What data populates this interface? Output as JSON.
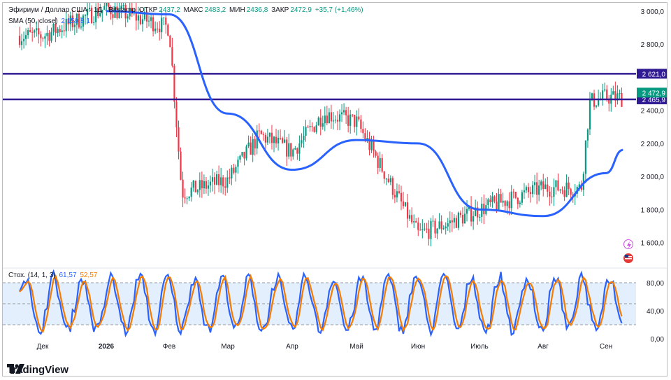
{
  "legend": {
    "symbol": "Эфириум / Доллар США · 1Д · Bitstamp",
    "open_label": "ОТКР",
    "open_value": "2437,2",
    "high_label": "МАКС",
    "high_value": "2483,2",
    "low_label": "МИН",
    "low_value": "2436,8",
    "close_label": "ЗАКР",
    "close_value": "2472,9",
    "change": "+35,7 (+1,46%)",
    "sma_label": "SMA (50, close)",
    "sma_value": "2 159,8 1"
  },
  "stoch_legend": {
    "label": "Стох. (14, 1, 3)",
    "k_value": "61,57",
    "d_value": "52,57"
  },
  "brand": {
    "name": "TradingView"
  },
  "colors": {
    "up": "#089981",
    "down": "#f23645",
    "sma": "#2962ff",
    "level": "#311b92",
    "stoch_k": "#2962ff",
    "stoch_d": "#f57c00",
    "stoch_band": "#e3effc"
  },
  "icons": [
    "lightning-icon",
    "flag-icon"
  ],
  "chart_data": [
    {
      "type": "candlestick",
      "title": "Эфириум / Доллар США · 1Д · Bitstamp",
      "ylim": [
        1450,
        3050
      ],
      "y_ticks": [
        "1 600,0",
        "1 800,0",
        "2 000,0",
        "2 200,0",
        "2 400,0",
        "2 800,0",
        "3 000,0"
      ],
      "x_ticks": [
        "Дек",
        "2026",
        "Фев",
        "Мар",
        "Апр",
        "Май",
        "Июн",
        "Июль",
        "Авг",
        "Сен"
      ],
      "horizontal_levels": [
        {
          "label": "2 621,0",
          "value": 2621
        },
        {
          "label": "2 465,9",
          "value": 2465.9
        }
      ],
      "last_price": {
        "label": "2 472,9",
        "value": 2472.9
      },
      "close_anchors": [
        {
          "x": "Дек",
          "y": 2850
        },
        {
          "x": "2026",
          "y": 3020
        },
        {
          "x": "Фев",
          "y": 2900
        },
        {
          "x": "Фев+6d",
          "y": 1900
        },
        {
          "x": "Мар",
          "y": 1980
        },
        {
          "x": "Мар+15d",
          "y": 2250
        },
        {
          "x": "Апр",
          "y": 2150
        },
        {
          "x": "Апр+15d",
          "y": 2380
        },
        {
          "x": "Май",
          "y": 2330
        },
        {
          "x": "Июн",
          "y": 1650
        },
        {
          "x": "Июн+15d",
          "y": 1720
        },
        {
          "x": "Июль",
          "y": 1800
        },
        {
          "x": "Авг",
          "y": 1930
        },
        {
          "x": "Авг+18d",
          "y": 1930
        },
        {
          "x": "Авг+22d",
          "y": 2450
        },
        {
          "x": "Сен",
          "y": 2480
        },
        {
          "x": "Сен+8d",
          "y": 2473
        }
      ],
      "sma": {
        "name": "SMA (50, close)",
        "points": [
          {
            "x": "2026",
            "y": 3000
          },
          {
            "x": "Фев",
            "y": 2980
          },
          {
            "x": "Мар",
            "y": 2380
          },
          {
            "x": "Апр",
            "y": 2040
          },
          {
            "x": "Май",
            "y": 2220
          },
          {
            "x": "Июн",
            "y": 2200
          },
          {
            "x": "Июль",
            "y": 1800
          },
          {
            "x": "Авг",
            "y": 1760
          },
          {
            "x": "Сен",
            "y": 2020
          },
          {
            "x": "Сен+8d",
            "y": 2160
          }
        ]
      }
    },
    {
      "type": "line",
      "title": "Стох. (14, 1, 3)",
      "ylim": [
        0,
        100
      ],
      "y_ticks": [
        "80,00",
        "40,00",
        "0,00"
      ],
      "band": [
        20,
        80
      ],
      "series": [
        {
          "name": "%K",
          "value": 61.57
        },
        {
          "name": "%D",
          "value": 52.57
        }
      ]
    }
  ]
}
